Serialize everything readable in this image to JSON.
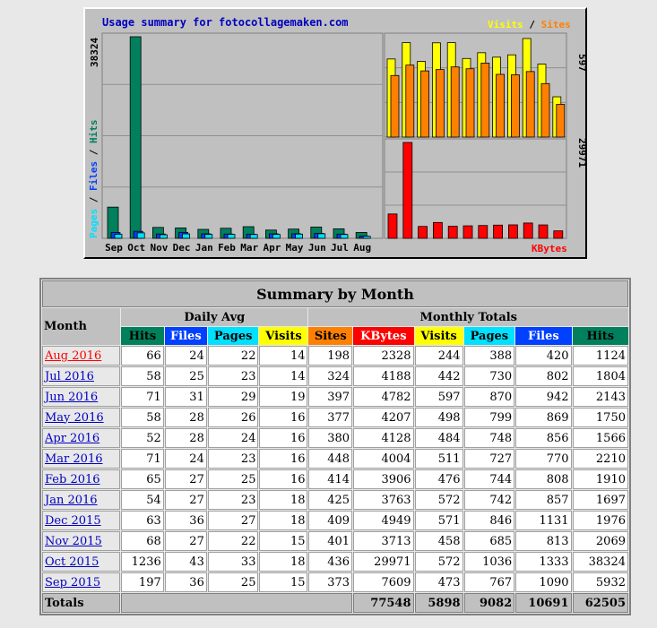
{
  "chart_data": [
    {
      "type": "bar",
      "title": "Usage summary for fotocollagemaken.com",
      "ylabel": "Pages / Files / Hits",
      "ymax_label": "38324",
      "ylim": [
        0,
        38324
      ],
      "categories": [
        "Sep",
        "Oct",
        "Nov",
        "Dec",
        "Jan",
        "Feb",
        "Mar",
        "Apr",
        "May",
        "Jun",
        "Jul",
        "Aug"
      ],
      "series": [
        {
          "name": "Hits",
          "color": "#00805c",
          "values": [
            5932,
            38324,
            2069,
            1976,
            1697,
            1910,
            2210,
            1566,
            1750,
            2143,
            1804,
            1124
          ]
        },
        {
          "name": "Files",
          "color": "#0040ff",
          "values": [
            1090,
            1333,
            813,
            1131,
            857,
            808,
            770,
            856,
            869,
            942,
            802,
            420
          ]
        },
        {
          "name": "Pages",
          "color": "#00e0ff",
          "values": [
            767,
            1036,
            685,
            846,
            742,
            744,
            727,
            748,
            799,
            870,
            730,
            388
          ]
        }
      ]
    },
    {
      "type": "bar",
      "legend": [
        "Visits",
        "Sites"
      ],
      "ymax_label": "597",
      "ylim": [
        0,
        597
      ],
      "series": [
        {
          "name": "Visits",
          "color": "#ffff00",
          "values": [
            473,
            572,
            458,
            571,
            572,
            476,
            511,
            484,
            498,
            597,
            442,
            244
          ]
        },
        {
          "name": "Sites",
          "color": "#ff8000",
          "values": [
            373,
            436,
            401,
            409,
            425,
            414,
            448,
            380,
            377,
            397,
            324,
            198
          ]
        }
      ]
    },
    {
      "type": "bar",
      "legend": [
        "KBytes"
      ],
      "ymax_label": "29971",
      "ylim": [
        0,
        29971
      ],
      "series": [
        {
          "name": "KBytes",
          "color": "#ff0000",
          "values": [
            7609,
            29971,
            3713,
            4949,
            3763,
            3906,
            4004,
            4128,
            4207,
            4782,
            4188,
            2328
          ]
        }
      ]
    }
  ],
  "table": {
    "title": "Summary by Month",
    "month_header": "Month",
    "daily_avg_header": "Daily Avg",
    "monthly_totals_header": "Monthly Totals",
    "daily_cols": [
      "Hits",
      "Files",
      "Pages",
      "Visits"
    ],
    "monthly_cols": [
      "Sites",
      "KBytes",
      "Visits",
      "Pages",
      "Files",
      "Hits"
    ],
    "rows": [
      {
        "month": "Aug 2016",
        "current": true,
        "cells": [
          "66",
          "24",
          "22",
          "14",
          "198",
          "2328",
          "244",
          "388",
          "420",
          "1124"
        ]
      },
      {
        "month": "Jul 2016",
        "cells": [
          "58",
          "25",
          "23",
          "14",
          "324",
          "4188",
          "442",
          "730",
          "802",
          "1804"
        ]
      },
      {
        "month": "Jun 2016",
        "cells": [
          "71",
          "31",
          "29",
          "19",
          "397",
          "4782",
          "597",
          "870",
          "942",
          "2143"
        ]
      },
      {
        "month": "May 2016",
        "cells": [
          "58",
          "28",
          "26",
          "16",
          "377",
          "4207",
          "498",
          "799",
          "869",
          "1750"
        ]
      },
      {
        "month": "Apr 2016",
        "cells": [
          "52",
          "28",
          "24",
          "16",
          "380",
          "4128",
          "484",
          "748",
          "856",
          "1566"
        ]
      },
      {
        "month": "Mar 2016",
        "cells": [
          "71",
          "24",
          "23",
          "16",
          "448",
          "4004",
          "511",
          "727",
          "770",
          "2210"
        ]
      },
      {
        "month": "Feb 2016",
        "cells": [
          "65",
          "27",
          "25",
          "16",
          "414",
          "3906",
          "476",
          "744",
          "808",
          "1910"
        ]
      },
      {
        "month": "Jan 2016",
        "cells": [
          "54",
          "27",
          "23",
          "18",
          "425",
          "3763",
          "572",
          "742",
          "857",
          "1697"
        ]
      },
      {
        "month": "Dec 2015",
        "cells": [
          "63",
          "36",
          "27",
          "18",
          "409",
          "4949",
          "571",
          "846",
          "1131",
          "1976"
        ]
      },
      {
        "month": "Nov 2015",
        "cells": [
          "68",
          "27",
          "22",
          "15",
          "401",
          "3713",
          "458",
          "685",
          "813",
          "2069"
        ]
      },
      {
        "month": "Oct 2015",
        "cells": [
          "1236",
          "43",
          "33",
          "18",
          "436",
          "29971",
          "572",
          "1036",
          "1333",
          "38324"
        ]
      },
      {
        "month": "Sep 2015",
        "cells": [
          "197",
          "36",
          "25",
          "15",
          "373",
          "7609",
          "473",
          "767",
          "1090",
          "5932"
        ]
      }
    ],
    "totals": {
      "label": "Totals",
      "kbytes": "77548",
      "visits": "5898",
      "pages": "9082",
      "files": "10691",
      "hits": "62505"
    }
  }
}
